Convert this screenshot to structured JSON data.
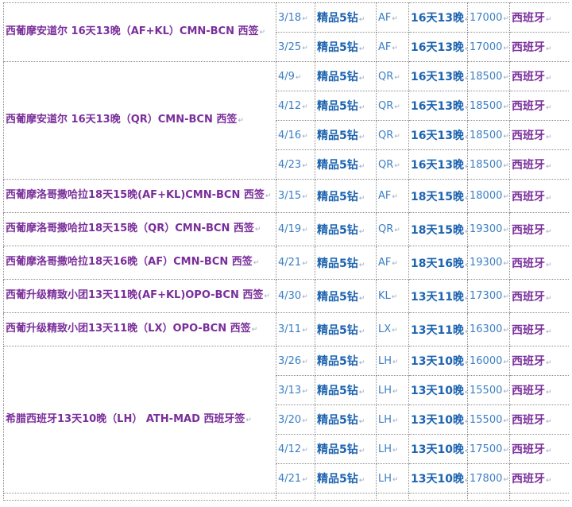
{
  "groups": [
    {
      "route": "西葡摩安道尔 16天13晚（AF+KL）CMN-BCN 西签",
      "rows": [
        {
          "date": "3/18",
          "grade": "精品5钻",
          "code": "AF",
          "days": "16天13晚",
          "price": "17000",
          "dest": "西班牙"
        },
        {
          "date": "3/25",
          "grade": "精品5钻",
          "code": "AF",
          "days": "16天13晚",
          "price": "17000",
          "dest": "西班牙"
        }
      ]
    },
    {
      "route": "西葡摩安道尔 16天13晚（QR）CMN-BCN 西签",
      "rows": [
        {
          "date": "4/9",
          "grade": "精品5钻",
          "code": "QR",
          "days": "16天13晚",
          "price": "18500",
          "dest": "西班牙"
        },
        {
          "date": "4/12",
          "grade": "精品5钻",
          "code": "QR",
          "days": "16天13晚",
          "price": "18500",
          "dest": "西班牙"
        },
        {
          "date": "4/16",
          "grade": "精品5钻",
          "code": "QR",
          "days": "16天13晚",
          "price": "18500",
          "dest": "西班牙"
        },
        {
          "date": "4/23",
          "grade": "精品5钻",
          "code": "QR",
          "days": "16天13晚",
          "price": "18500",
          "dest": "西班牙"
        }
      ]
    },
    {
      "route": "西葡摩洛哥撒哈拉18天15晚(AF+KL)CMN-BCN 西签",
      "rows": [
        {
          "date": "3/15",
          "grade": "精品5钻",
          "code": "AF",
          "days": "18天15晚",
          "price": "18000",
          "dest": "西班牙"
        }
      ]
    },
    {
      "route": "西葡摩洛哥撒哈拉18天15晚（QR）CMN-BCN 西签",
      "rows": [
        {
          "date": "4/19",
          "grade": "精品5钻",
          "code": "QR",
          "days": "18天15晚",
          "price": "19300",
          "dest": "西班牙"
        }
      ]
    },
    {
      "route": "西葡摩洛哥撒哈拉18天16晚（AF）CMN-BCN 西签",
      "rows": [
        {
          "date": "4/21",
          "grade": "精品5钻",
          "code": "AF",
          "days": "18天16晚",
          "price": "19300",
          "dest": "西班牙"
        }
      ]
    },
    {
      "route": "西葡升级精致小团13天11晚(AF+KL)OPO-BCN 西签",
      "rows": [
        {
          "date": "4/30",
          "grade": "精品5钻",
          "code": "KL",
          "days": "13天11晚",
          "price": "17300",
          "dest": "西班牙"
        }
      ]
    },
    {
      "route": "西葡升级精致小团13天11晚（LX）OPO-BCN 西签",
      "rows": [
        {
          "date": "3/11",
          "grade": "精品5钻",
          "code": "LX",
          "days": "13天11晚",
          "price": "16300",
          "dest": "西班牙"
        }
      ]
    },
    {
      "route": "希腊西班牙13天10晚（LH） ATH-MAD 西班牙签",
      "rows": [
        {
          "date": "3/26",
          "grade": "精品5钻",
          "code": "LH",
          "days": "13天10晚",
          "price": "16000",
          "dest": "西班牙"
        },
        {
          "date": "3/13",
          "grade": "精品5钻",
          "code": "LH",
          "days": "13天10晚",
          "price": "15500",
          "dest": "西班牙"
        },
        {
          "date": "3/20",
          "grade": "精品5钻",
          "code": "LH",
          "days": "13天10晚",
          "price": "15500",
          "dest": "西班牙"
        },
        {
          "date": "4/12",
          "grade": "精品5钻",
          "code": "LH",
          "days": "13天10晚",
          "price": "17500",
          "dest": "西班牙"
        },
        {
          "date": "4/21",
          "grade": "精品5钻",
          "code": "LH",
          "days": "13天10晚",
          "price": "17800",
          "dest": "西班牙"
        }
      ]
    }
  ]
}
